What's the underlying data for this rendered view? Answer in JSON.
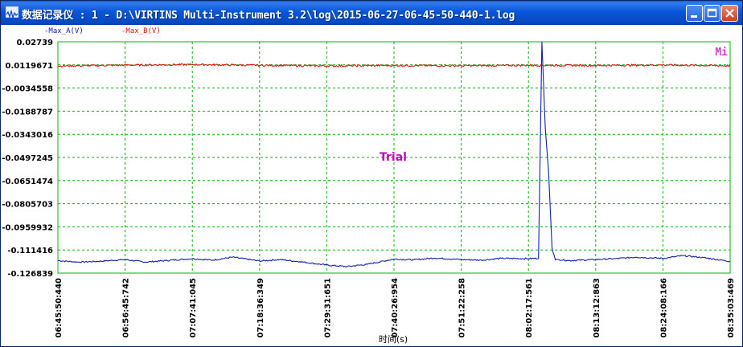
{
  "window": {
    "title": "数据记录仪 : 1 - D:\\VIRTINS Multi-Instrument 3.2\\log\\2015-06-27-06-45-50-440-1.log",
    "buttons": [
      "minimize",
      "maximize",
      "close"
    ]
  },
  "overlay": {
    "watermark": "Trial",
    "corner_label": "Mi"
  },
  "colors": {
    "series_a": "#1020b8",
    "series_b": "#e01010",
    "grid": "#00b800",
    "watermark": "#c000c0"
  },
  "chart_data": {
    "type": "line",
    "xlabel": "时间(s)",
    "ylim": [
      -0.126839,
      0.02739
    ],
    "y_ticks": [
      "0.02739",
      "0.0119671",
      "-0.0034558",
      "-0.0188787",
      "-0.0343016",
      "-0.0497245",
      "-0.0651474",
      "-0.0805703",
      "-0.0959932",
      "-0.111416",
      "-0.126839"
    ],
    "x_ticks": [
      "06:45:50:440",
      "06:56:45:742",
      "07:07:41:045",
      "07:18:36:349",
      "07:29:31:651",
      "07:40:26:954",
      "07:51:22:258",
      "08:02:17:561",
      "08:13:12:863",
      "08:24:08:166",
      "08:35:03:469"
    ],
    "legend": [
      "Max_A(V)",
      "Max_B(V)"
    ],
    "grid": true,
    "series": [
      {
        "name": "Max_A(V)",
        "x": [
          0,
          0.3,
          0.6,
          1.0,
          1.3,
          1.6,
          2.0,
          2.3,
          2.6,
          3.0,
          3.3,
          3.6,
          4.0,
          4.3,
          4.6,
          5.0,
          5.3,
          5.6,
          6.0,
          6.3,
          6.6,
          7.0,
          7.15,
          7.2,
          7.25,
          7.3,
          7.35,
          7.4,
          7.45,
          7.6,
          8.0,
          8.3,
          8.6,
          9.0,
          9.3,
          9.6,
          10.0
        ],
        "values": [
          -0.1185,
          -0.1195,
          -0.119,
          -0.1178,
          -0.1195,
          -0.1185,
          -0.1172,
          -0.1182,
          -0.1162,
          -0.1188,
          -0.1178,
          -0.1192,
          -0.1215,
          -0.1225,
          -0.121,
          -0.1175,
          -0.118,
          -0.1168,
          -0.1178,
          -0.1182,
          -0.117,
          -0.1172,
          -0.117,
          0.0274,
          -0.03,
          -0.06,
          -0.11,
          -0.118,
          -0.1178,
          -0.1185,
          -0.1178,
          -0.1172,
          -0.1162,
          -0.117,
          -0.1152,
          -0.1165,
          -0.119
        ]
      },
      {
        "name": "Max_B(V)",
        "x": [
          0,
          1,
          2,
          3,
          4,
          5,
          6,
          7,
          8,
          9,
          10
        ],
        "values": [
          0.0112,
          0.0118,
          0.0122,
          0.0117,
          0.0113,
          0.0116,
          0.0114,
          0.0117,
          0.0116,
          0.0119,
          0.0114
        ]
      }
    ]
  }
}
